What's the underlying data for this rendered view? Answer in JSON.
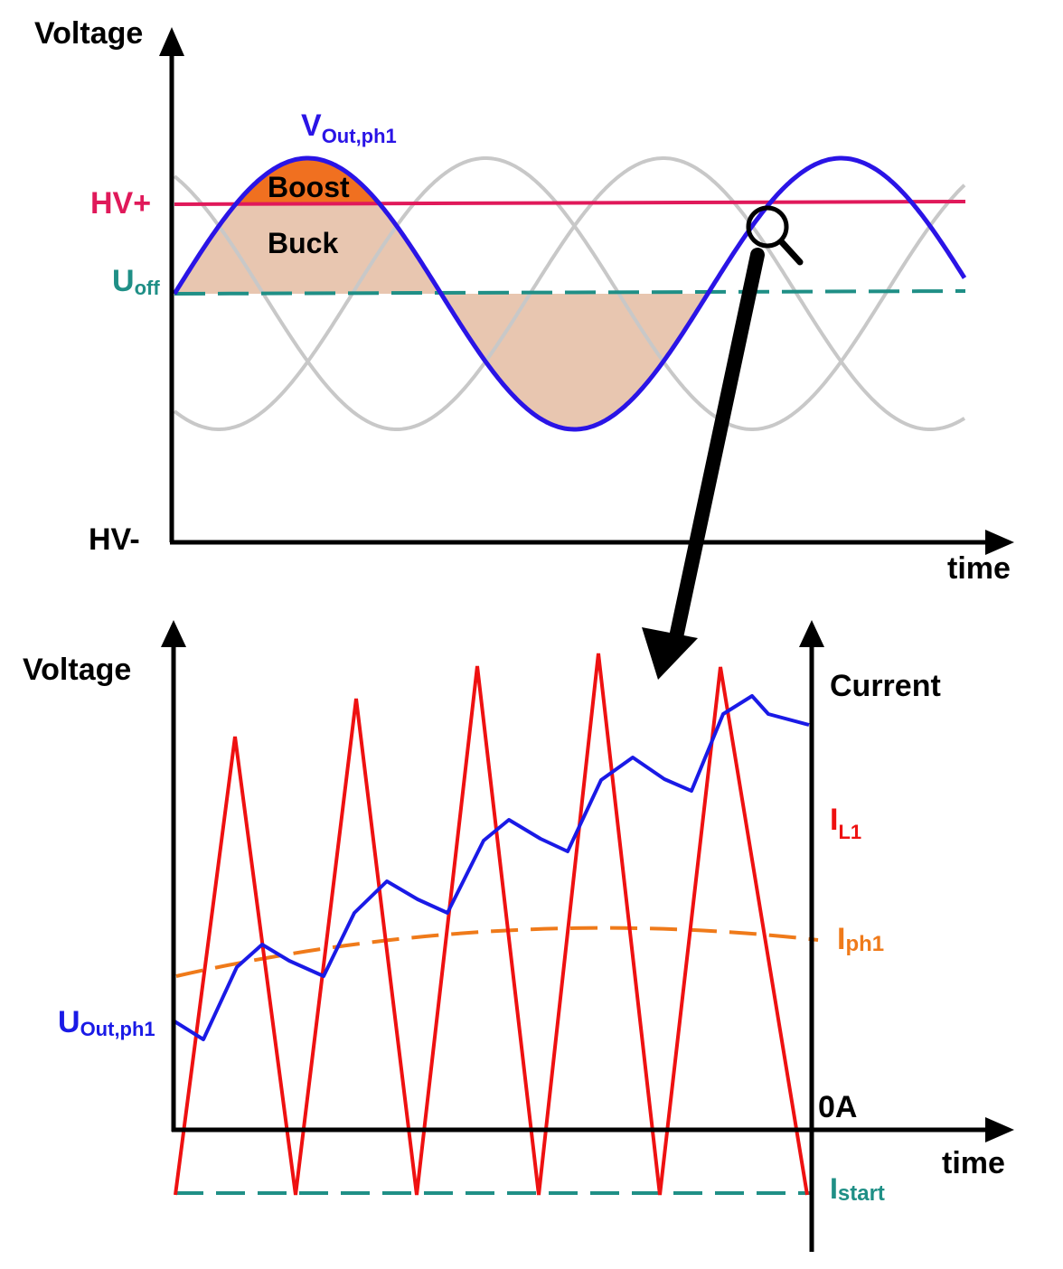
{
  "top_panel": {
    "y_axis_label": "Voltage",
    "x_axis_label": "time",
    "level_hv_plus": "HV+",
    "level_hv_minus": "HV-",
    "offset_label_main": "U",
    "offset_label_sub": "off",
    "signal_label_main": "V",
    "signal_label_sub": "Out,ph1",
    "region_boost": "Boost",
    "region_buck": "Buck"
  },
  "bottom_panel": {
    "y_axis_left_label": "Voltage",
    "y_axis_right_label": "Current",
    "x_axis_label": "time",
    "zero_current_label": "0A",
    "inductor_current_main": "I",
    "inductor_current_sub": "L1",
    "phase_current_main": "I",
    "phase_current_sub": "ph1",
    "output_voltage_main": "U",
    "output_voltage_sub": "Out,ph1",
    "start_current_main": "I",
    "start_current_sub": "start"
  },
  "colors": {
    "axis": "#000000",
    "signal_blue": "#2a14e6",
    "hv_plus_line": "#e0195a",
    "offset_dashed": "#1f8f86",
    "other_phases": "#c8c8c8",
    "boost_fill": "#f07020",
    "buck_fill": "#e8c6b0",
    "inductor_red": "#ee1111",
    "phase_orange": "#ef7a1a",
    "voltage_blue": "#1a1ae6",
    "zoom_arrow": "#000000"
  },
  "icons": {
    "zoom": "magnifier-icon",
    "arrow": "zoom-arrow"
  }
}
